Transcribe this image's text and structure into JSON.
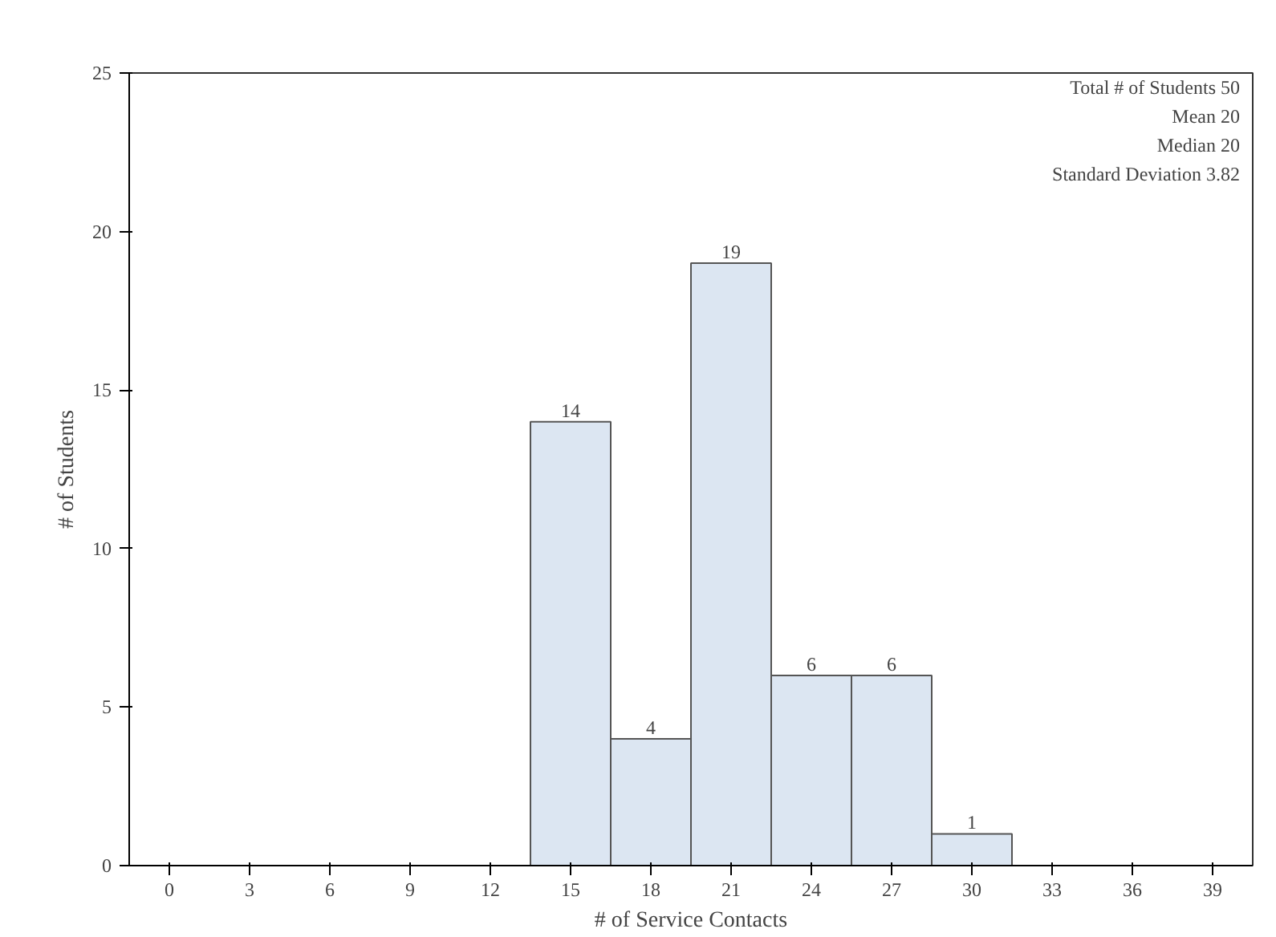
{
  "chart_data": {
    "type": "histogram",
    "xlabel": "# of Service Contacts",
    "ylabel": "# of Students",
    "bins": [
      13.5,
      16.5,
      19.5,
      22.5,
      25.5,
      28.5,
      31.5
    ],
    "values": [
      14,
      4,
      19,
      6,
      6,
      1
    ],
    "color": "#dce6f2",
    "data_labels": true,
    "xlim": [
      -1.5,
      40.5
    ],
    "xticks": [
      0,
      3,
      6,
      9,
      12,
      15,
      18,
      21,
      24,
      27,
      30,
      33,
      36,
      39
    ],
    "ylim": [
      0,
      25
    ],
    "yticks": [
      0,
      5,
      10,
      15,
      20,
      25
    ],
    "grid": false,
    "annotations": [
      "Total # of Students 50",
      "Mean 20",
      "Median 20",
      "Standard Deviation 3.82"
    ]
  }
}
